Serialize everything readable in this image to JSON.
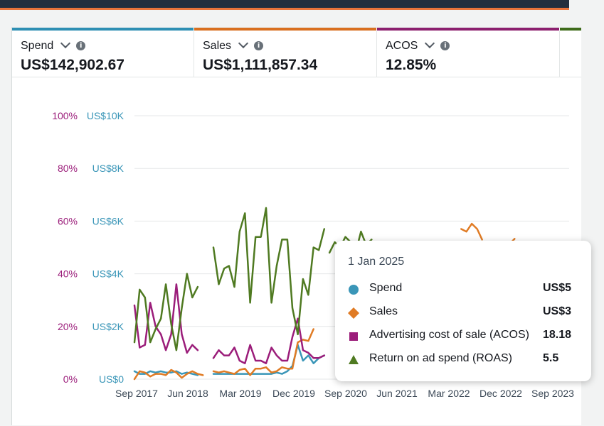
{
  "colors": {
    "spend": "#3a96b8",
    "sales": "#e07b24",
    "acos": "#9b1d7a",
    "roas": "#4f7a21",
    "grid": "#e5e7e8",
    "axis_text": "#3b4856"
  },
  "metrics": [
    {
      "title": "Spend",
      "value": "US$142,902.67",
      "color": "#2e8fb3"
    },
    {
      "title": "Sales",
      "value": "US$1,111,857.34",
      "color": "#d96f1f"
    },
    {
      "title": "ACOS",
      "value": "12.85%",
      "color": "#8c1f6e"
    },
    {
      "title": "",
      "value": "",
      "color": "#3f6b1a"
    }
  ],
  "tooltip": {
    "date": "1 Jan 2025",
    "rows": [
      {
        "label": "Spend",
        "value": "US$5",
        "icon": "circle-icon"
      },
      {
        "label": "Sales",
        "value": "US$3",
        "icon": "diamond-icon"
      },
      {
        "label": "Advertising cost of sale (ACOS)",
        "value": "18.18",
        "icon": "square-icon"
      },
      {
        "label": "Return on ad spend (ROAS)",
        "value": "5.5",
        "icon": "triangle-icon"
      }
    ]
  },
  "chart_data": {
    "type": "line",
    "x_tick_labels": [
      "Sep 2017",
      "Jun 2018",
      "Mar 2019",
      "Dec 2019",
      "Sep 2020",
      "Jun 2021",
      "Mar 2022",
      "Dec 2022",
      "Sep 2023"
    ],
    "y_left_ticks": [
      "100%",
      "80%",
      "60%",
      "40%",
      "20%",
      "0%"
    ],
    "y_right_ticks": [
      "US$10K",
      "US$8K",
      "US$6K",
      "US$4K",
      "US$2K",
      "US$0"
    ],
    "y_left_range": [
      0,
      100
    ],
    "y_right_range": [
      0,
      10000
    ],
    "grid": true,
    "series": [
      {
        "name": "Spend",
        "key": "spend",
        "axis": "money",
        "segments": [
          [
            [
              "2017-09-01",
              300
            ],
            [
              "2017-10-01",
              200
            ],
            [
              "2017-11-01",
              200
            ],
            [
              "2017-12-01",
              300
            ],
            [
              "2018-01-01",
              250
            ],
            [
              "2018-02-01",
              300
            ],
            [
              "2018-03-01",
              250
            ],
            [
              "2018-04-01",
              250
            ],
            [
              "2018-05-01",
              300
            ],
            [
              "2018-06-01",
              200
            ],
            [
              "2018-07-01",
              250
            ],
            [
              "2018-08-01",
              200
            ],
            [
              "2018-09-01",
              150
            ]
          ],
          [
            [
              "2018-12-01",
              200
            ],
            [
              "2019-01-01",
              200
            ],
            [
              "2019-02-01",
              200
            ],
            [
              "2019-03-01",
              200
            ],
            [
              "2019-04-01",
              200
            ],
            [
              "2019-05-01",
              200
            ],
            [
              "2019-06-01",
              200
            ],
            [
              "2019-07-01",
              200
            ],
            [
              "2019-08-01",
              200
            ],
            [
              "2019-09-01",
              200
            ],
            [
              "2019-10-01",
              200
            ],
            [
              "2019-11-01",
              200
            ],
            [
              "2019-12-01",
              250
            ],
            [
              "2020-01-01",
              200
            ],
            [
              "2020-02-01",
              300
            ],
            [
              "2020-03-01",
              500
            ],
            [
              "2020-04-01",
              1300
            ],
            [
              "2020-05-01",
              700
            ],
            [
              "2020-06-01",
              900
            ],
            [
              "2020-07-01",
              600
            ],
            [
              "2020-08-01",
              800
            ],
            [
              "2020-09-01",
              900
            ]
          ]
        ]
      },
      {
        "name": "Sales",
        "key": "sales",
        "axis": "money",
        "segments": [
          [
            [
              "2017-09-01",
              0
            ],
            [
              "2017-10-01",
              300
            ],
            [
              "2017-11-01",
              250
            ],
            [
              "2017-12-01",
              100
            ],
            [
              "2018-01-01",
              200
            ],
            [
              "2018-02-01",
              200
            ],
            [
              "2018-03-01",
              150
            ],
            [
              "2018-04-01",
              350
            ],
            [
              "2018-05-01",
              250
            ],
            [
              "2018-06-01",
              50
            ],
            [
              "2018-07-01",
              200
            ],
            [
              "2018-08-01",
              300
            ],
            [
              "2018-09-01",
              200
            ],
            [
              "2018-10-01",
              150
            ]
          ],
          [
            [
              "2018-12-01",
              300
            ],
            [
              "2019-01-01",
              250
            ],
            [
              "2019-02-01",
              300
            ],
            [
              "2019-03-01",
              250
            ],
            [
              "2019-04-01",
              200
            ],
            [
              "2019-05-01",
              350
            ],
            [
              "2019-06-01",
              400
            ],
            [
              "2019-07-01",
              150
            ],
            [
              "2019-08-01",
              400
            ],
            [
              "2019-09-01",
              400
            ],
            [
              "2019-10-01",
              450
            ],
            [
              "2019-11-01",
              250
            ],
            [
              "2019-12-01",
              300
            ],
            [
              "2020-01-01",
              450
            ],
            [
              "2020-02-01",
              400
            ],
            [
              "2020-03-01",
              400
            ],
            [
              "2020-04-01",
              1400
            ],
            [
              "2020-05-01",
              1500
            ],
            [
              "2020-06-01",
              1450
            ],
            [
              "2020-07-01",
              1900
            ]
          ],
          [
            [
              "2022-11-01",
              5700
            ],
            [
              "2022-12-01",
              5600
            ],
            [
              "2023-01-01",
              5900
            ],
            [
              "2023-02-01",
              5700
            ],
            [
              "2023-03-01",
              5300
            ]
          ],
          [
            [
              "2023-09-01",
              5300
            ]
          ]
        ]
      },
      {
        "name": "Advertising cost of sale (ACOS)",
        "key": "acos",
        "axis": "percent",
        "segments": [
          [
            [
              "2017-09-01",
              28
            ],
            [
              "2017-10-01",
              12
            ],
            [
              "2017-11-01",
              13
            ],
            [
              "2017-12-01",
              29
            ],
            [
              "2018-01-01",
              20
            ],
            [
              "2018-02-01",
              17
            ],
            [
              "2018-03-01",
              11
            ],
            [
              "2018-04-01",
              17
            ],
            [
              "2018-05-01",
              36
            ],
            [
              "2018-06-01",
              17
            ],
            [
              "2018-07-01",
              10
            ],
            [
              "2018-08-01",
              13
            ],
            [
              "2018-09-01",
              11
            ]
          ],
          [
            [
              "2018-12-01",
              8
            ],
            [
              "2019-01-01",
              11
            ],
            [
              "2019-02-01",
              9
            ],
            [
              "2019-03-01",
              9
            ],
            [
              "2019-04-01",
              12
            ],
            [
              "2019-05-01",
              7
            ],
            [
              "2019-06-01",
              6
            ],
            [
              "2019-07-01",
              13
            ],
            [
              "2019-08-01",
              7
            ],
            [
              "2019-09-01",
              7
            ],
            [
              "2019-10-01",
              6
            ],
            [
              "2019-11-01",
              12
            ],
            [
              "2019-12-01",
              9
            ],
            [
              "2020-01-01",
              7
            ],
            [
              "2020-02-01",
              7
            ],
            [
              "2020-03-01",
              16
            ],
            [
              "2020-04-01",
              23
            ],
            [
              "2020-05-01",
              11
            ],
            [
              "2020-06-01",
              10
            ],
            [
              "2020-07-01",
              8
            ],
            [
              "2020-08-01",
              8
            ],
            [
              "2020-09-01",
              9
            ]
          ]
        ]
      },
      {
        "name": "Return on ad spend (ROAS)",
        "key": "roas",
        "axis": "percent",
        "segments": [
          [
            [
              "2017-09-01",
              14
            ],
            [
              "2017-10-01",
              34
            ],
            [
              "2017-11-01",
              31
            ],
            [
              "2017-12-01",
              14
            ],
            [
              "2018-01-01",
              19
            ],
            [
              "2018-02-01",
              23
            ],
            [
              "2018-03-01",
              36
            ],
            [
              "2018-04-01",
              21
            ],
            [
              "2018-05-01",
              11
            ],
            [
              "2018-06-01",
              27
            ],
            [
              "2018-07-01",
              40
            ],
            [
              "2018-08-01",
              31
            ],
            [
              "2018-09-01",
              35
            ]
          ],
          [
            [
              "2018-12-01",
              50
            ],
            [
              "2019-01-01",
              36
            ],
            [
              "2019-02-01",
              42
            ],
            [
              "2019-03-01",
              43
            ],
            [
              "2019-04-01",
              35
            ],
            [
              "2019-05-01",
              56
            ],
            [
              "2019-06-01",
              63
            ],
            [
              "2019-07-01",
              29
            ],
            [
              "2019-08-01",
              54
            ],
            [
              "2019-09-01",
              54
            ],
            [
              "2019-10-01",
              65
            ],
            [
              "2019-11-01",
              29
            ],
            [
              "2019-12-01",
              43
            ],
            [
              "2020-01-01",
              53
            ],
            [
              "2020-02-01",
              53
            ],
            [
              "2020-03-01",
              27
            ],
            [
              "2020-04-01",
              17
            ],
            [
              "2020-05-01",
              38
            ],
            [
              "2020-06-01",
              32
            ],
            [
              "2020-07-01",
              50
            ],
            [
              "2020-08-01",
              49
            ],
            [
              "2020-09-01",
              57
            ]
          ],
          [
            [
              "2020-10-01",
              48
            ],
            [
              "2020-11-01",
              52
            ],
            [
              "2020-12-01",
              50
            ],
            [
              "2021-01-01",
              54
            ],
            [
              "2021-02-01",
              52
            ],
            [
              "2021-03-01",
              48
            ],
            [
              "2021-04-01",
              56
            ],
            [
              "2021-05-01",
              51
            ],
            [
              "2021-06-01",
              53
            ]
          ]
        ]
      }
    ]
  }
}
